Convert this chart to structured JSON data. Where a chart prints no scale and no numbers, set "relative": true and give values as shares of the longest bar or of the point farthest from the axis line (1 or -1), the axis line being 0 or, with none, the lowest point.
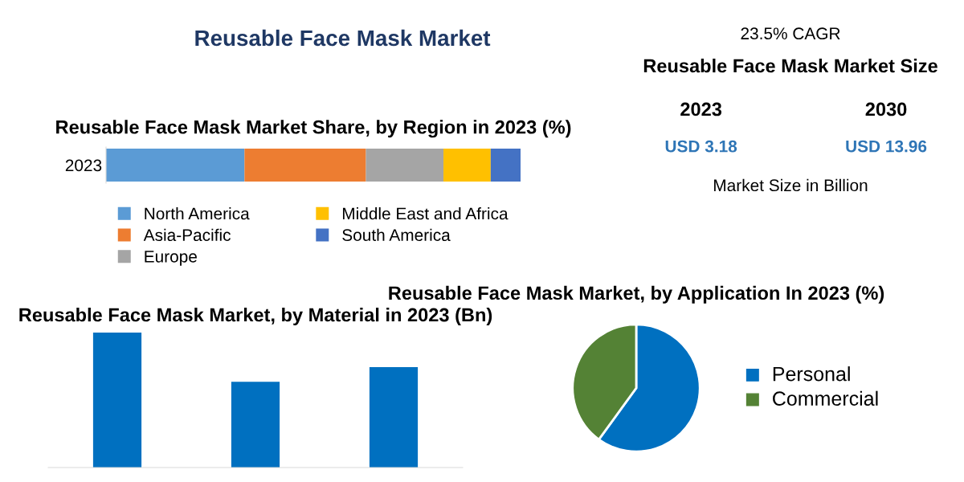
{
  "chart_data": [
    {
      "type": "bar",
      "title": "Reusable Face Mask Market",
      "subtitle": "Reusable Face Mask Market Share, by Region in 2023 (%)",
      "orientation": "horizontal",
      "stacked": true,
      "relative": true,
      "categories": [
        "2023"
      ],
      "legend": "bottom",
      "series": [
        {
          "name": "North America",
          "color": "#5b9bd5",
          "values": [
            0.334
          ]
        },
        {
          "name": "Asia-Pacific",
          "color": "#ed7d31",
          "values": [
            0.293
          ]
        },
        {
          "name": "Europe",
          "color": "#a5a5a5",
          "values": [
            0.187
          ]
        },
        {
          "name": "Middle East and Africa",
          "color": "#ffc000",
          "values": [
            0.114
          ]
        },
        {
          "name": "South America",
          "color": "#4472c4",
          "values": [
            0.072
          ]
        }
      ]
    },
    {
      "type": "other",
      "title": "Reusable Face Mask Market Size",
      "annotations": [
        "23.5% CAGR",
        "2023",
        "2030",
        "USD 3.18",
        "USD 13.96",
        "Market Size in Billion"
      ]
    },
    {
      "type": "bar",
      "title": "Reusable Face Mask Market, by Material in 2023 (Bn)",
      "relative": true,
      "categories": [
        null,
        null,
        null
      ],
      "values": [
        1,
        0.636,
        0.744
      ],
      "color": "#0070c0"
    },
    {
      "type": "pie",
      "title": "Reusable Face Mask Market, by Application In 2023 (%)",
      "categories": [
        "Personal",
        "Commercial"
      ],
      "values": [
        60,
        40
      ],
      "colors": [
        "#0070c0",
        "#548235"
      ],
      "legend": "right"
    }
  ]
}
